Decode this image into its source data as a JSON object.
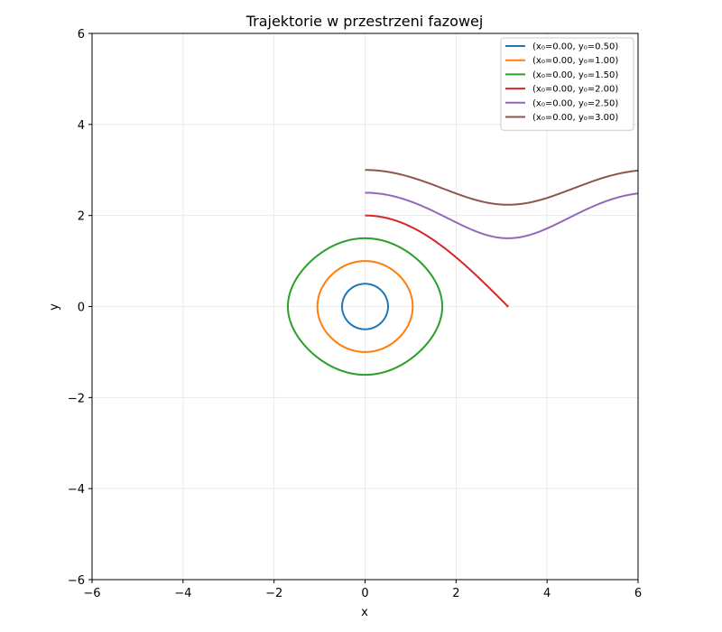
{
  "chart_data": {
    "type": "line",
    "title": "Trajektorie w przestrzeni fazowej",
    "xlabel": "x",
    "ylabel": "y",
    "xlim": [
      -6,
      6
    ],
    "ylim": [
      -6,
      6
    ],
    "xticks": [
      -6,
      -4,
      -2,
      0,
      2,
      4,
      6
    ],
    "yticks": [
      -6,
      -4,
      -2,
      0,
      2,
      4,
      6
    ],
    "xtick_labels": [
      "−6",
      "−4",
      "−2",
      "0",
      "2",
      "4",
      "6"
    ],
    "ytick_labels": [
      "−6",
      "−4",
      "−2",
      "0",
      "2",
      "4",
      "6"
    ],
    "grid": true,
    "legend_position": "top-right",
    "series": [
      {
        "name": "(x₀=0.00, y₀=0.50)",
        "color": "#1f77b4",
        "x0": 0.0,
        "y0": 0.5
      },
      {
        "name": "(x₀=0.00, y₀=1.00)",
        "color": "#ff7f0e",
        "x0": 0.0,
        "y0": 1.0
      },
      {
        "name": "(x₀=0.00, y₀=1.50)",
        "color": "#2ca02c",
        "x0": 0.0,
        "y0": 1.5
      },
      {
        "name": "(x₀=0.00, y₀=2.00)",
        "color": "#d62728",
        "x0": 0.0,
        "y0": 2.0
      },
      {
        "name": "(x₀=0.00, y₀=2.50)",
        "color": "#9467bd",
        "x0": 0.0,
        "y0": 2.5
      },
      {
        "name": "(x₀=0.00, y₀=3.00)",
        "color": "#8c564b",
        "x0": 0.0,
        "y0": 3.0
      }
    ]
  }
}
